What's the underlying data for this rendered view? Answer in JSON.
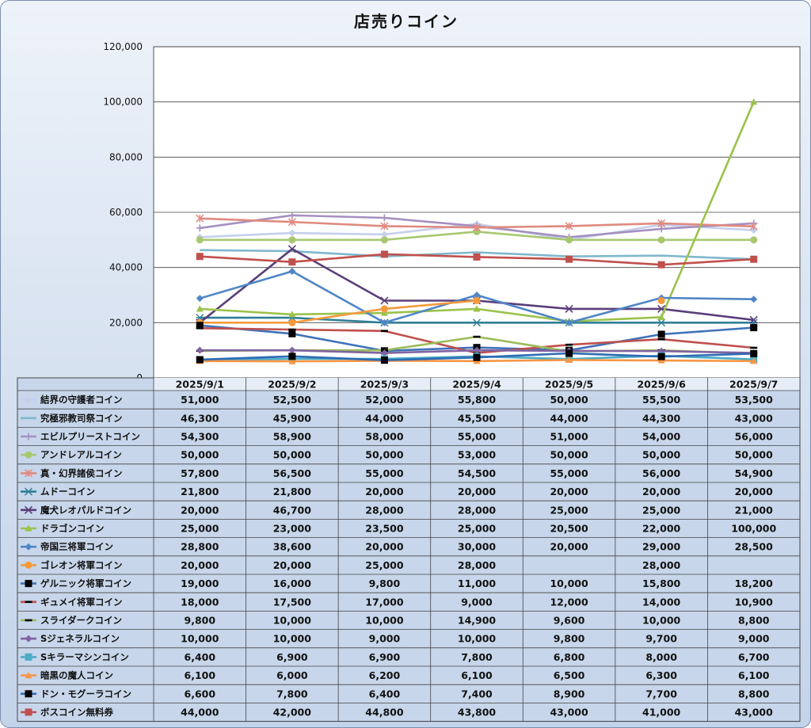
{
  "chart_data": {
    "type": "line",
    "title": "店売りコイン",
    "ylim": [
      0,
      120000
    ],
    "yticks": [
      0,
      20000,
      40000,
      60000,
      80000,
      100000,
      120000
    ],
    "ytick_labels": [
      "0",
      "20,000",
      "40,000",
      "60,000",
      "80,000",
      "100,000",
      "120,000"
    ],
    "grid": true,
    "legend": "data-table",
    "categories": [
      "2025/9/1",
      "2025/9/2",
      "2025/9/3",
      "2025/9/4",
      "2025/9/5",
      "2025/9/6",
      "2025/9/7"
    ],
    "series": [
      {
        "name": "結界の守護者コイン",
        "color": "#c6d0ec",
        "marker": "diamond",
        "values": [
          51000,
          52500,
          52000,
          55800,
          50000,
          55500,
          53500
        ]
      },
      {
        "name": "究極邪教司祭コイン",
        "color": "#7fb8cc",
        "marker": "none",
        "values": [
          46300,
          45900,
          44000,
          45500,
          44000,
          44300,
          43000
        ]
      },
      {
        "name": "エビルプリーストコイン",
        "color": "#a590c0",
        "marker": "plus",
        "values": [
          54300,
          58900,
          58000,
          55000,
          51000,
          54000,
          56000
        ]
      },
      {
        "name": "アンドレアルコイン",
        "color": "#a8c870",
        "marker": "circle",
        "values": [
          50000,
          50000,
          50000,
          53000,
          50000,
          50000,
          50000
        ]
      },
      {
        "name": "真・幻界諸侯コイン",
        "color": "#e08a80",
        "marker": "star",
        "values": [
          57800,
          56500,
          55000,
          54500,
          55000,
          56000,
          54900
        ]
      },
      {
        "name": "ムドーコイン",
        "color": "#2f7f96",
        "marker": "asterisk",
        "values": [
          21800,
          21800,
          20000,
          20000,
          20000,
          20000,
          20000
        ]
      },
      {
        "name": "魔犬レオパルドコイン",
        "color": "#5a3f7a",
        "marker": "x",
        "values": [
          20000,
          46700,
          28000,
          28000,
          25000,
          25000,
          21000
        ]
      },
      {
        "name": "ドラゴンコイン",
        "color": "#9bc24c",
        "marker": "triangle",
        "values": [
          25000,
          23000,
          23500,
          25000,
          20500,
          22000,
          100000
        ]
      },
      {
        "name": "帝国三将軍コイン",
        "color": "#4f86c6",
        "marker": "diamond",
        "values": [
          28800,
          38600,
          20000,
          30000,
          20000,
          29000,
          28500
        ]
      },
      {
        "name": "ゴレオン将軍コイン",
        "color": "#f59a3c",
        "marker": "circle",
        "values": [
          20000,
          20000,
          25000,
          28000,
          null,
          28000,
          null
        ]
      },
      {
        "name": "ゲルニック将軍コイン",
        "color": "#3f72b8",
        "marker": "square",
        "values": [
          19000,
          16000,
          9800,
          11000,
          10000,
          15800,
          18200
        ]
      },
      {
        "name": "ギュメイ将軍コイン",
        "color": "#c0504d",
        "marker": "dash",
        "values": [
          18000,
          17500,
          17000,
          9000,
          12000,
          14000,
          10900
        ]
      },
      {
        "name": "スライダークコイン",
        "color": "#9bbb59",
        "marker": "dash",
        "values": [
          9800,
          10000,
          10000,
          14900,
          9600,
          10000,
          8800
        ]
      },
      {
        "name": "Sジェネラルコイン",
        "color": "#8064a2",
        "marker": "diamond",
        "values": [
          10000,
          10000,
          9000,
          10000,
          9800,
          9700,
          9000
        ]
      },
      {
        "name": "Sキラーマシンコイン",
        "color": "#4bacc6",
        "marker": "square",
        "values": [
          6400,
          6900,
          6900,
          7800,
          6800,
          8000,
          6700
        ]
      },
      {
        "name": "暗黒の魔人コイン",
        "color": "#f79646",
        "marker": "triangle",
        "values": [
          6100,
          6000,
          6200,
          6100,
          6500,
          6300,
          6100
        ]
      },
      {
        "name": "ドン・モグーラコイン",
        "color": "#2e6bb5",
        "marker": "square",
        "values": [
          6600,
          7800,
          6400,
          7400,
          8900,
          7700,
          8800
        ]
      },
      {
        "name": "ボスコイン無料券",
        "color": "#c0504d",
        "marker": "square",
        "values": [
          44000,
          42000,
          44800,
          43800,
          43000,
          41000,
          43000
        ]
      }
    ]
  }
}
